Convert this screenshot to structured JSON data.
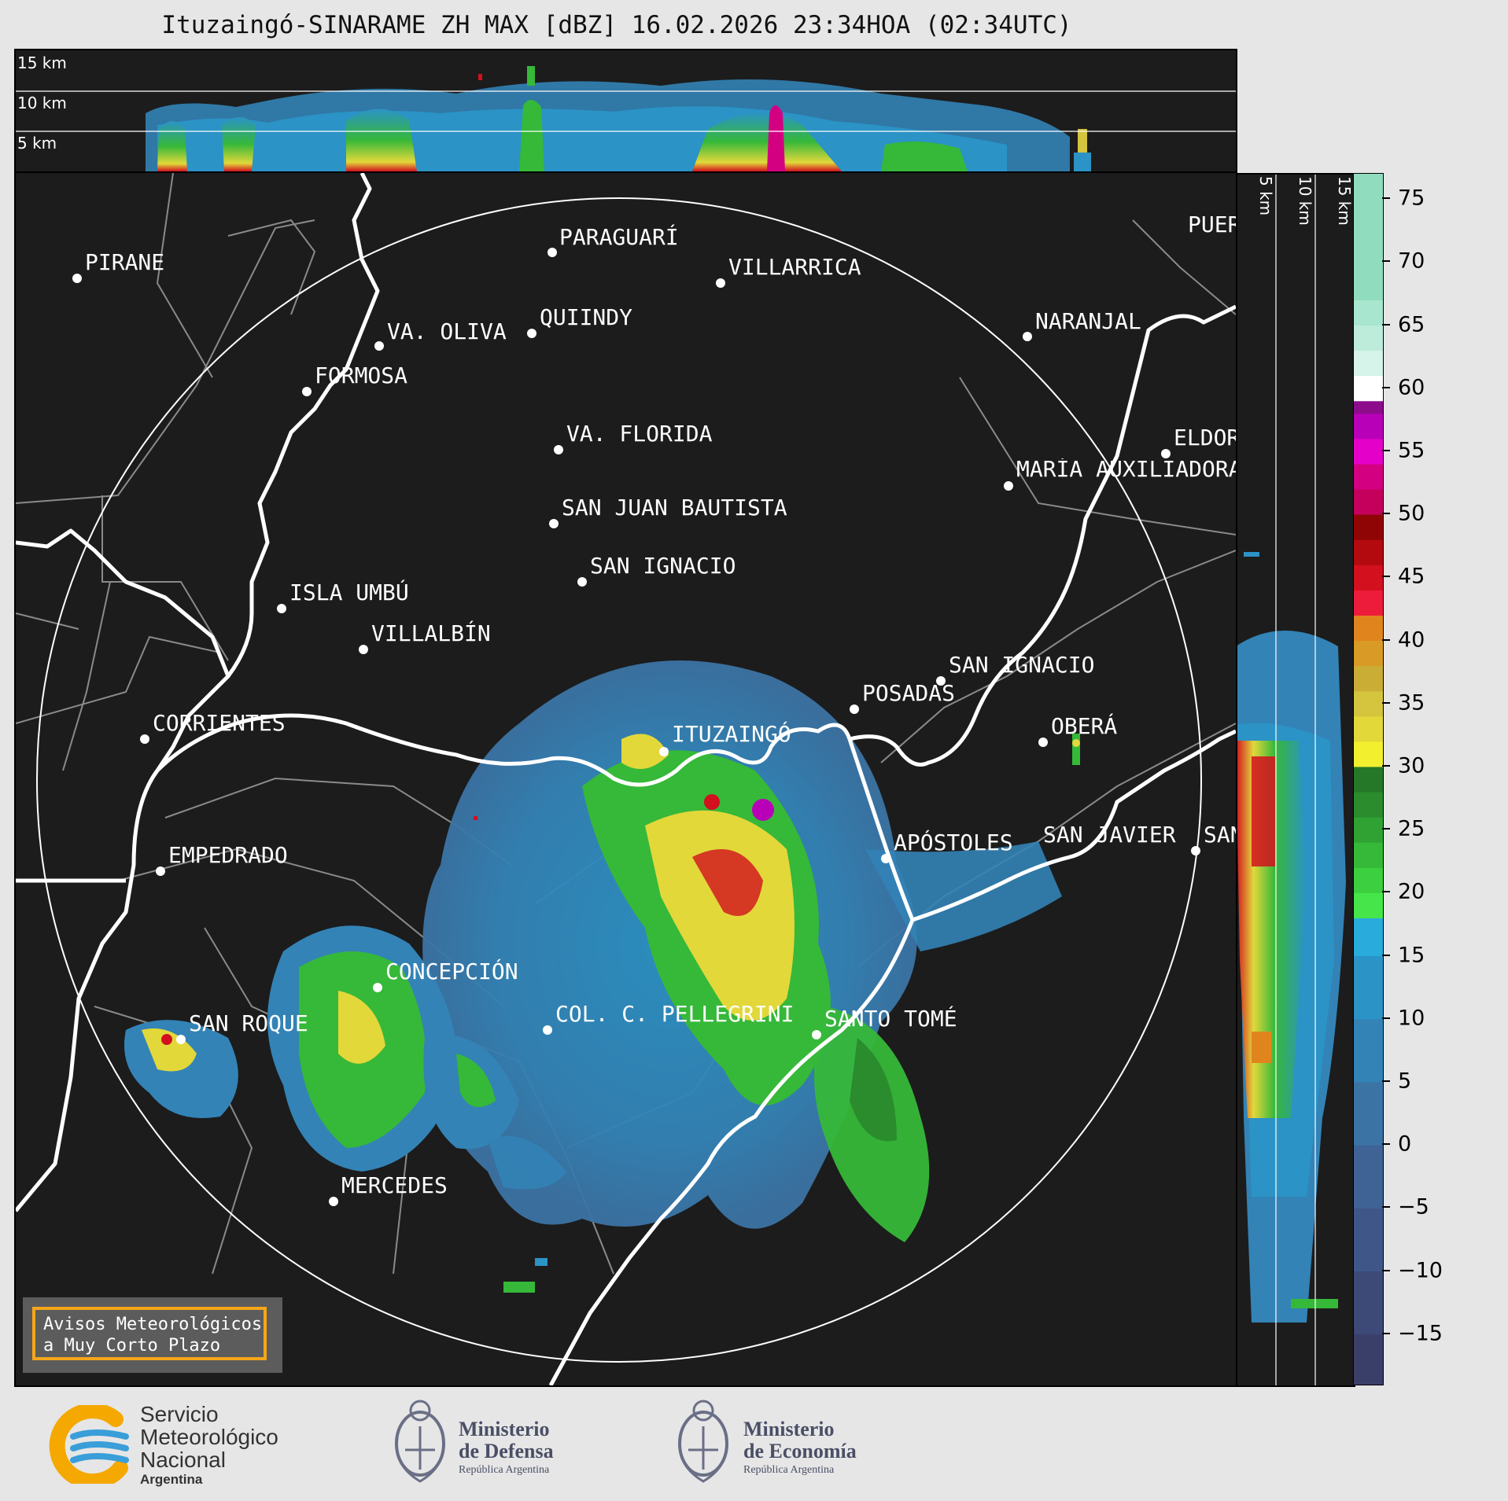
{
  "title": "Ituzaingó-SINARAME ZH MAX [dBZ] 16.02.2026 23:34HOA (02:34UTC)",
  "top_panel": {
    "altitude_labels": [
      "15 km",
      "10 km",
      "5 km"
    ]
  },
  "right_panel": {
    "altitude_labels": [
      "5 km",
      "10 km",
      "15 km"
    ]
  },
  "colorbar": {
    "unit": "dBZ",
    "ticks": [
      "75",
      "70",
      "65",
      "60",
      "55",
      "50",
      "45",
      "40",
      "35",
      "30",
      "25",
      "20",
      "15",
      "10",
      "5",
      "0",
      "−5",
      "−10",
      "−15"
    ],
    "tick_values": [
      75,
      70,
      65,
      60,
      55,
      50,
      45,
      40,
      35,
      30,
      25,
      20,
      15,
      10,
      5,
      0,
      -5,
      -10,
      -15
    ],
    "range": [
      -19,
      77
    ],
    "colors": [
      {
        "from": -19,
        "to": -15,
        "color": "#3a3f6a"
      },
      {
        "from": -15,
        "to": -10,
        "color": "#3d4a78"
      },
      {
        "from": -10,
        "to": -5,
        "color": "#3f5688"
      },
      {
        "from": -5,
        "to": 0,
        "color": "#3e6394"
      },
      {
        "from": 0,
        "to": 5,
        "color": "#3b73a4"
      },
      {
        "from": 5,
        "to": 10,
        "color": "#3383b6"
      },
      {
        "from": 10,
        "to": 15,
        "color": "#2b93c6"
      },
      {
        "from": 15,
        "to": 18,
        "color": "#29abdc"
      },
      {
        "from": 18,
        "to": 20,
        "color": "#46e64a"
      },
      {
        "from": 20,
        "to": 22,
        "color": "#3ccf3f"
      },
      {
        "from": 22,
        "to": 24,
        "color": "#36b839"
      },
      {
        "from": 24,
        "to": 26,
        "color": "#2fa233"
      },
      {
        "from": 26,
        "to": 28,
        "color": "#2a8c2d"
      },
      {
        "from": 28,
        "to": 30,
        "color": "#257828"
      },
      {
        "from": 30,
        "to": 32,
        "color": "#f2ef2e"
      },
      {
        "from": 32,
        "to": 34,
        "color": "#e2d83a"
      },
      {
        "from": 34,
        "to": 36,
        "color": "#d4c43e"
      },
      {
        "from": 36,
        "to": 38,
        "color": "#c9ad35"
      },
      {
        "from": 38,
        "to": 40,
        "color": "#d99b25"
      },
      {
        "from": 40,
        "to": 42,
        "color": "#e0851d"
      },
      {
        "from": 42,
        "to": 44,
        "color": "#ee1c3b"
      },
      {
        "from": 44,
        "to": 46,
        "color": "#d2101e"
      },
      {
        "from": 46,
        "to": 48,
        "color": "#b30a10"
      },
      {
        "from": 48,
        "to": 50,
        "color": "#8f0505"
      },
      {
        "from": 50,
        "to": 52,
        "color": "#c4005c"
      },
      {
        "from": 52,
        "to": 54,
        "color": "#d40082"
      },
      {
        "from": 54,
        "to": 56,
        "color": "#e400c8"
      },
      {
        "from": 56,
        "to": 58,
        "color": "#b800b8"
      },
      {
        "from": 58,
        "to": 59,
        "color": "#8c0c8c"
      },
      {
        "from": 59,
        "to": 61,
        "color": "#ffffff"
      },
      {
        "from": 61,
        "to": 63,
        "color": "#d6f4e9"
      },
      {
        "from": 63,
        "to": 65,
        "color": "#bdecdb"
      },
      {
        "from": 65,
        "to": 67,
        "color": "#a8e6cf"
      },
      {
        "from": 67,
        "to": 77,
        "color": "#8fdcbe"
      }
    ]
  },
  "cities": [
    {
      "name": "PIRANE"
    },
    {
      "name": "PARAGUARÍ"
    },
    {
      "name": "VILLARRICA"
    },
    {
      "name": "VA. OLIVA"
    },
    {
      "name": "QUIINDY"
    },
    {
      "name": "NARANJAL"
    },
    {
      "name": "FORMOSA"
    },
    {
      "name": "VA. FLORIDA"
    },
    {
      "name": "ELDORADO"
    },
    {
      "name": "MARÍA AUXILIADORA"
    },
    {
      "name": "SAN JUAN BAUTISTA"
    },
    {
      "name": "SAN IGNACIO"
    },
    {
      "name": "ISLA UMBÚ"
    },
    {
      "name": "VILLALBÍN"
    },
    {
      "name": "SAN IGNACIO"
    },
    {
      "name": "POSADAS"
    },
    {
      "name": "CORRIENTES"
    },
    {
      "name": "ITUZAINGÓ"
    },
    {
      "name": "OBERÁ"
    },
    {
      "name": "EMPEDRADO"
    },
    {
      "name": "APÓSTOLES"
    },
    {
      "name": "SAN JAVIER"
    },
    {
      "name": "SAN VICENTE"
    },
    {
      "name": "CONCEPCIÓN"
    },
    {
      "name": "SAN ROQUE"
    },
    {
      "name": "COL. C. PELLEGRINI"
    },
    {
      "name": "SANTO TOMÉ"
    },
    {
      "name": "MERCEDES"
    },
    {
      "name": "PUERTO"
    }
  ],
  "warning": {
    "line1": "Avisos Meteorológicos",
    "line2": "a Muy Corto Plazo"
  },
  "footer": {
    "smn": {
      "line1": "Servicio",
      "line2": "Meteorológico",
      "line3": "Nacional",
      "line4": "Argentina"
    },
    "defensa": {
      "line1": "Ministerio",
      "line2": "de Defensa",
      "line3": "República Argentina"
    },
    "economia": {
      "line1": "Ministerio",
      "line2": "de Economía",
      "line3": "República Argentina"
    }
  },
  "map_colors": {
    "background": "#1c1c1c",
    "range_ring": "#ffffff",
    "rivers": "#ffffff",
    "borders": "#8a8a8a",
    "warning_border": "#f5a61a",
    "smn_orange": "#f5a800",
    "smn_blue": "#3a9ed9"
  }
}
